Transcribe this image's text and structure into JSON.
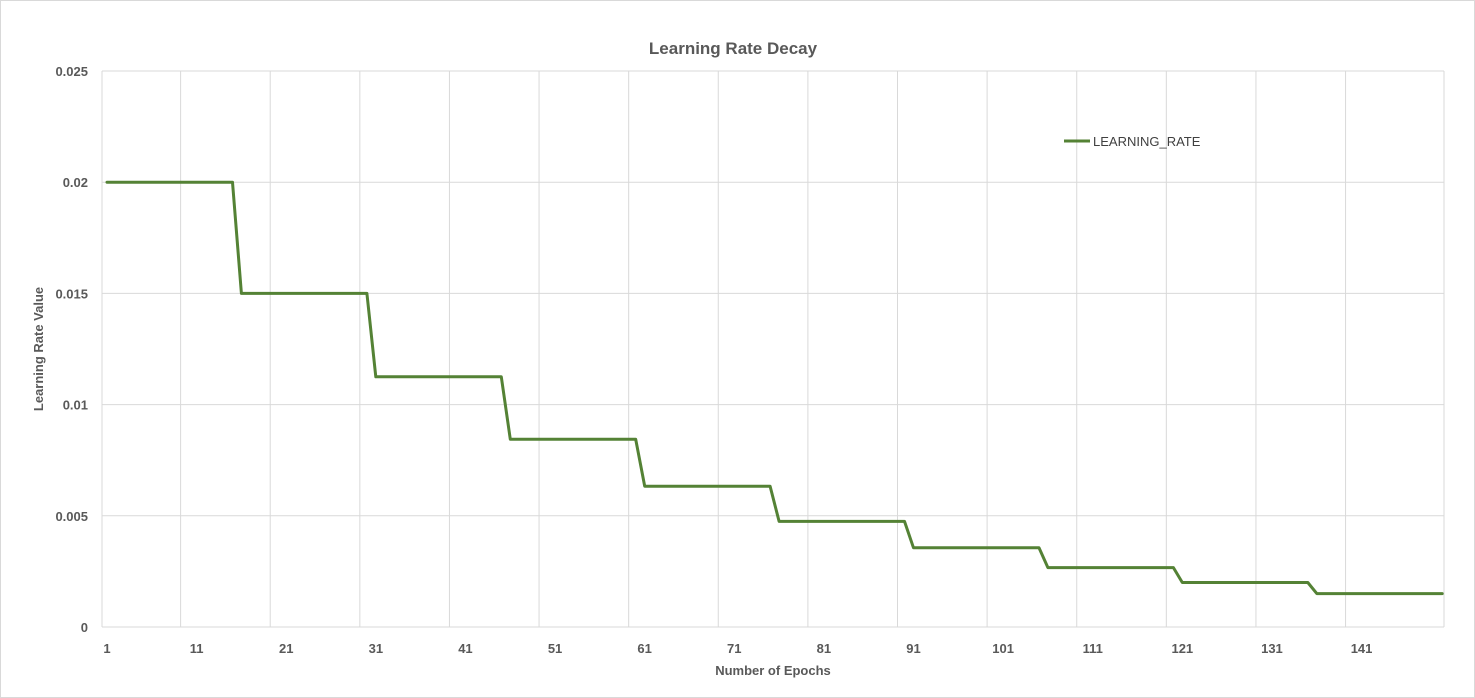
{
  "chart_data": {
    "type": "line",
    "title": "Learning Rate Decay",
    "xlabel": "Number of Epochs",
    "ylabel": "Learning Rate Value",
    "xlim": [
      1,
      150
    ],
    "ylim": [
      0,
      0.025
    ],
    "x_tick_labels": [
      "1",
      "11",
      "21",
      "31",
      "41",
      "51",
      "61",
      "71",
      "81",
      "91",
      "101",
      "111",
      "121",
      "131",
      "141"
    ],
    "y_tick_labels": [
      "0",
      "0.005",
      "0.01",
      "0.015",
      "0.02",
      "0.025"
    ],
    "grid": true,
    "legend_position": "top-right",
    "series": [
      {
        "name": "LEARNING_RATE",
        "color": "#548235",
        "x": [
          1,
          15,
          16,
          30,
          31,
          45,
          46,
          60,
          61,
          75,
          76,
          90,
          91,
          105,
          106,
          120,
          121,
          135,
          136,
          150
        ],
        "values": [
          0.02,
          0.02,
          0.015,
          0.015,
          0.01125,
          0.01125,
          0.00844,
          0.00844,
          0.00633,
          0.00633,
          0.00475,
          0.00475,
          0.00356,
          0.00356,
          0.00267,
          0.00267,
          0.002,
          0.002,
          0.0015,
          0.0015
        ]
      }
    ]
  }
}
